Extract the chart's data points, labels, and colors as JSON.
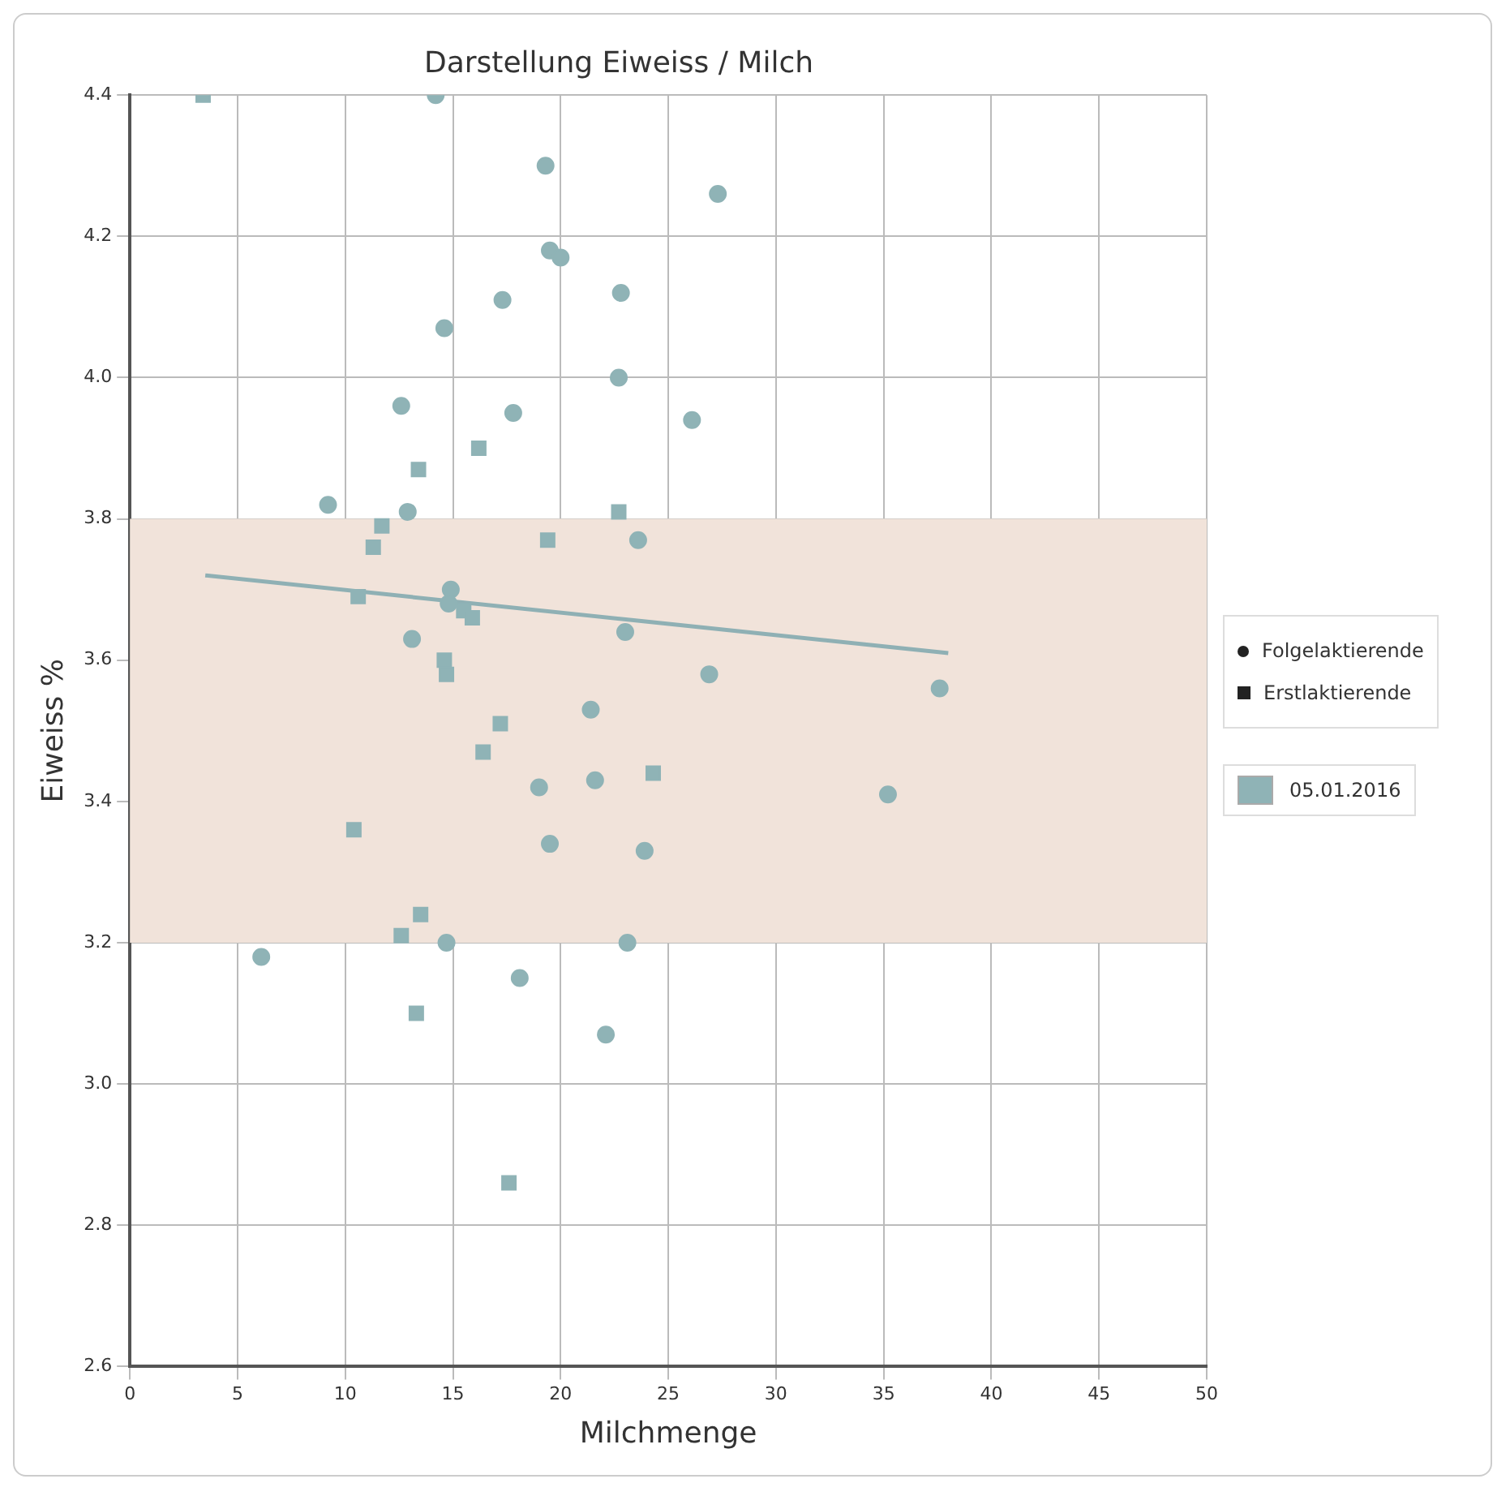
{
  "chart_data": {
    "type": "scatter",
    "title": "Darstellung Eiweiss / Milch",
    "xlabel": "Milchmenge",
    "ylabel": "Eiweiss %",
    "legend_title": "05.01.2016",
    "legend": "right",
    "grid": true,
    "xlim": [
      0,
      50
    ],
    "xticks": [
      0,
      5,
      10,
      15,
      20,
      25,
      30,
      35,
      40,
      45,
      50
    ],
    "ylim": [
      2.6,
      4.4
    ],
    "yticks": [
      2.6,
      2.8,
      {
        "value": 3,
        "label": "3.0"
      },
      3.2,
      3.4,
      3.6,
      3.8,
      {
        "value": 4,
        "label": "4.0"
      },
      4.2,
      4.4
    ],
    "bands": [
      {
        "axis": "y",
        "from": 3.2,
        "to": 3.8,
        "color": "#f1e3da"
      }
    ],
    "series": [
      {
        "name": "Folgelaktierende",
        "marker": "circle",
        "color": "#8fb3b6",
        "x": [
          14.2,
          19.3,
          27.3,
          19.5,
          20.0,
          17.3,
          22.8,
          14.6,
          22.7,
          26.1,
          12.6,
          17.8,
          9.2,
          12.9,
          23.6,
          14.9,
          14.8,
          23.0,
          13.1,
          21.4,
          26.9,
          37.6,
          19.0,
          21.6,
          35.2,
          19.5,
          23.9,
          23.1,
          14.7,
          6.1,
          18.1,
          22.1
        ],
        "values": [
          4.4,
          4.3,
          4.26,
          4.18,
          4.17,
          4.11,
          4.12,
          4.07,
          4.0,
          3.94,
          3.96,
          3.95,
          3.82,
          3.81,
          3.77,
          3.7,
          3.68,
          3.64,
          3.63,
          3.53,
          3.58,
          3.56,
          3.42,
          3.43,
          3.41,
          3.34,
          3.33,
          3.2,
          3.2,
          3.18,
          3.15,
          3.07
        ]
      },
      {
        "name": "Erstlaktierende",
        "marker": "square",
        "color": "#8fb3b6",
        "x": [
          3.4,
          16.2,
          13.4,
          11.7,
          11.3,
          19.4,
          22.7,
          10.6,
          15.5,
          15.9,
          14.6,
          14.7,
          17.2,
          16.4,
          24.3,
          10.4,
          13.5,
          12.6,
          13.3,
          17.6
        ],
        "values": [
          4.4,
          3.9,
          3.87,
          3.79,
          3.76,
          3.77,
          3.81,
          3.69,
          3.67,
          3.66,
          3.6,
          3.58,
          3.51,
          3.47,
          3.44,
          3.36,
          3.24,
          3.21,
          3.1,
          2.86
        ]
      },
      {
        "type": "line",
        "line_style": "solid",
        "marker": "none",
        "color": "#8fb0b4",
        "x": [
          3.5,
          38
        ],
        "values": [
          3.72,
          3.61
        ]
      }
    ]
  }
}
